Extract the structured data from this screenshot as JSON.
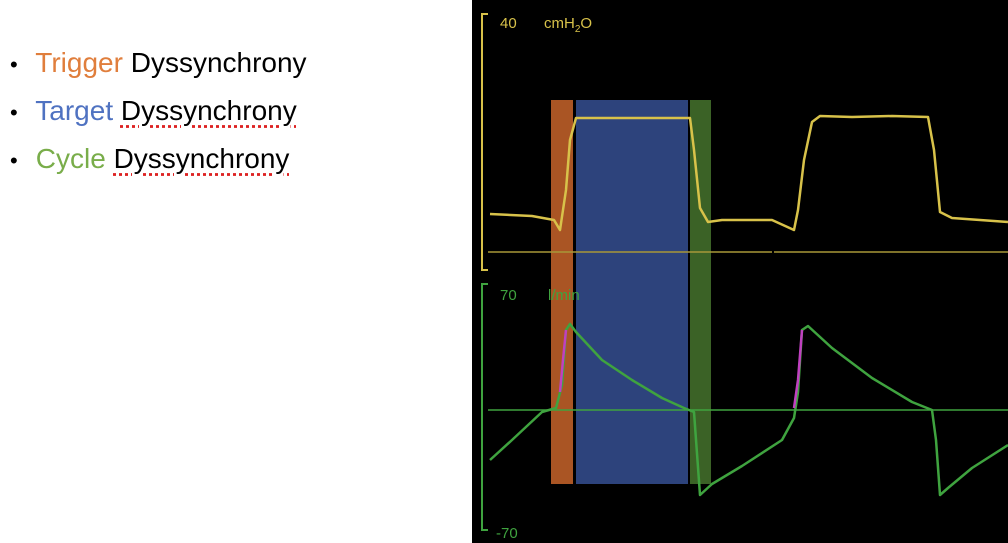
{
  "bullets": [
    {
      "keyword": "Trigger",
      "rest": "Dyssynchrony",
      "color": "#e07e3c"
    },
    {
      "keyword": "Target",
      "rest": "Dyssynchrony",
      "color": "#4f72c1"
    },
    {
      "keyword": "Cycle",
      "rest": "Dyssynchrony",
      "color": "#79ad4a"
    }
  ],
  "monitor": {
    "pressure": {
      "scale_max": "40",
      "unit_main": "cmH",
      "unit_sub": "2",
      "unit_end": "O",
      "color": "#d8c24a"
    },
    "flow": {
      "scale_max": "70",
      "scale_min": "-70",
      "unit": "l/min",
      "color": "#3fa33f",
      "trigger_color": "#c040c0"
    },
    "phases": [
      {
        "name": "Trigger",
        "color": "#c8642a"
      },
      {
        "name": "Target",
        "color": "#3c5aa6"
      },
      {
        "name": "Cycle",
        "color": "#4a7a30"
      }
    ]
  }
}
